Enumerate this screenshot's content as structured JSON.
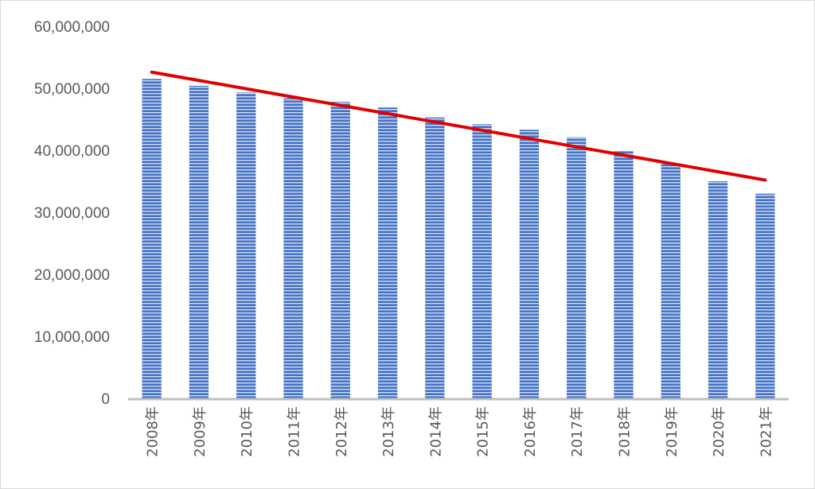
{
  "chart_data": {
    "type": "bar",
    "title": "",
    "xlabel": "",
    "ylabel": "",
    "ylim": [
      0,
      60000000
    ],
    "y_ticks": [
      0,
      10000000,
      20000000,
      30000000,
      40000000,
      50000000,
      60000000
    ],
    "y_tick_labels": [
      "0",
      "10,000,000",
      "20,000,000",
      "30,000,000",
      "40,000,000",
      "50,000,000",
      "60,000,000"
    ],
    "categories": [
      "2008年",
      "2009年",
      "2010年",
      "2011年",
      "2012年",
      "2013年",
      "2014年",
      "2015年",
      "2016年",
      "2017年",
      "2018年",
      "2019年",
      "2020年",
      "2021年"
    ],
    "values": [
      51500000,
      50400000,
      49300000,
      48400000,
      47800000,
      46900000,
      45300000,
      44200000,
      43300000,
      42100000,
      39900000,
      37800000,
      35000000,
      33000000
    ],
    "trendline": {
      "type": "linear",
      "start": 52600000,
      "end": 35200000
    },
    "grid": false,
    "legend": "none",
    "colors": {
      "bar": "#4472c4",
      "bar_stripe": "#ffffff",
      "trendline": "#e00000",
      "axis": "#bfbfbf",
      "text": "#595959"
    }
  }
}
